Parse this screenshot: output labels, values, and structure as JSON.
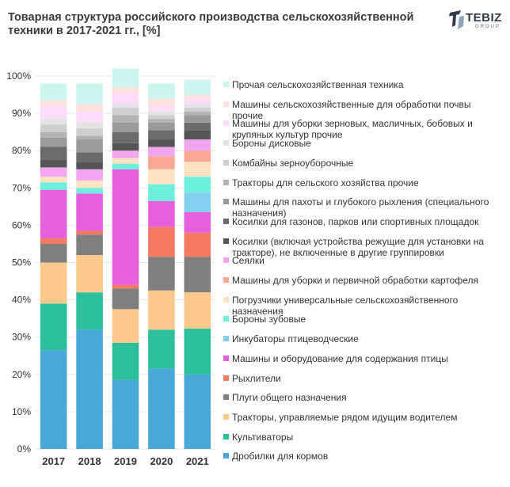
{
  "chart_data": {
    "type": "bar",
    "stacked": true,
    "title": "Товарная структура российского производства сельскохозяйственной техники в 2017-2021 гг., [%]",
    "categories": [
      "2017",
      "2018",
      "2019",
      "2020",
      "2021"
    ],
    "ylim": [
      0,
      100
    ],
    "yticks": [
      "0%",
      "10%",
      "20%",
      "30%",
      "40%",
      "50%",
      "60%",
      "70%",
      "80%",
      "90%",
      "100%"
    ],
    "legend_position": "right",
    "series": [
      {
        "name": "Дробилки для кормов",
        "color": "#4aa8d8",
        "values": [
          26.5,
          32,
          18.5,
          21.5,
          20
        ]
      },
      {
        "name": "Культиваторы",
        "color": "#2dbf9c",
        "values": [
          12.5,
          10,
          10,
          10.5,
          12.3
        ]
      },
      {
        "name": "Тракторы, управляемые рядом идущим водителем",
        "color": "#fcc98c",
        "values": [
          11,
          10,
          9,
          10.5,
          9.7
        ]
      },
      {
        "name": "Плуги общего назначения",
        "color": "#7f7f7f",
        "values": [
          5,
          5.5,
          5.5,
          9,
          9.5
        ]
      },
      {
        "name": "Рыхлители",
        "color": "#f47a62",
        "values": [
          1.5,
          1,
          1,
          8,
          6.5
        ]
      },
      {
        "name": "Машины и оборудование для содержания птицы",
        "color": "#e65fdc",
        "values": [
          13,
          10,
          31,
          7,
          5.5
        ]
      },
      {
        "name": "Инкубаторы птицеводческие",
        "color": "#85cfee",
        "values": [
          0,
          0,
          0,
          0,
          5.2
        ]
      },
      {
        "name": "Бороны зубовые",
        "color": "#6eeedd",
        "values": [
          2,
          1.5,
          1.5,
          4.5,
          4.3
        ]
      },
      {
        "name": "Погрузчики универсальные сельскохозяйственного назначения",
        "color": "#fde3c2",
        "values": [
          1.5,
          2,
          1.5,
          4,
          4
        ]
      },
      {
        "name": "Машины для уборки и первичной обработки картофеля",
        "color": "#f9a896",
        "values": [
          0,
          0,
          0,
          3.5,
          3
        ]
      },
      {
        "name": "Сеялки",
        "color": "#f2a6f0",
        "values": [
          2.5,
          3,
          2,
          2.5,
          3
        ]
      },
      {
        "name": "Косилки (включая устройства режущие для установки на тракторе), не включенные в другие группировки",
        "color": "#555555",
        "values": [
          2,
          2,
          2,
          2,
          2.5
        ]
      },
      {
        "name": "Косилки для газонов, парков или спортивных площадок",
        "color": "#6b6b6b",
        "values": [
          3.5,
          2.5,
          3,
          2.5,
          2
        ]
      },
      {
        "name": "Машины для пахоты и глубокого рыхления (специального назначения)",
        "color": "#9a9a9a",
        "values": [
          2.5,
          3.5,
          2.5,
          2,
          2
        ]
      },
      {
        "name": "Тракторы для сельского хозяйства прочие",
        "color": "#b3b3b3",
        "values": [
          1.5,
          1,
          2,
          1,
          1
        ]
      },
      {
        "name": "Комбайны зерноуборочные",
        "color": "#cfcfcf",
        "values": [
          2,
          2,
          2,
          1,
          1
        ]
      },
      {
        "name": "Бороны дисковые",
        "color": "#e3e3e3",
        "values": [
          1.5,
          1.5,
          1,
          1,
          1
        ]
      },
      {
        "name": "Машины для уборки зерновых, масличных, бобовых и крупяных культур прочие",
        "color": "#fcdcf8",
        "values": [
          3.5,
          3,
          3,
          1.5,
          1.5
        ]
      },
      {
        "name": "Машины сельскохозяйственные для обработки почвы прочие",
        "color": "#fde1dd",
        "values": [
          1.5,
          2,
          1.5,
          2,
          1
        ]
      },
      {
        "name": "Прочая сельскохозяйственная техника",
        "color": "#ccf5f0",
        "values": [
          4.5,
          5.5,
          5,
          4,
          4
        ]
      }
    ]
  },
  "logo": {
    "name": "TEBIZ",
    "sub": "GROUP",
    "color": "#2f3b4a"
  }
}
